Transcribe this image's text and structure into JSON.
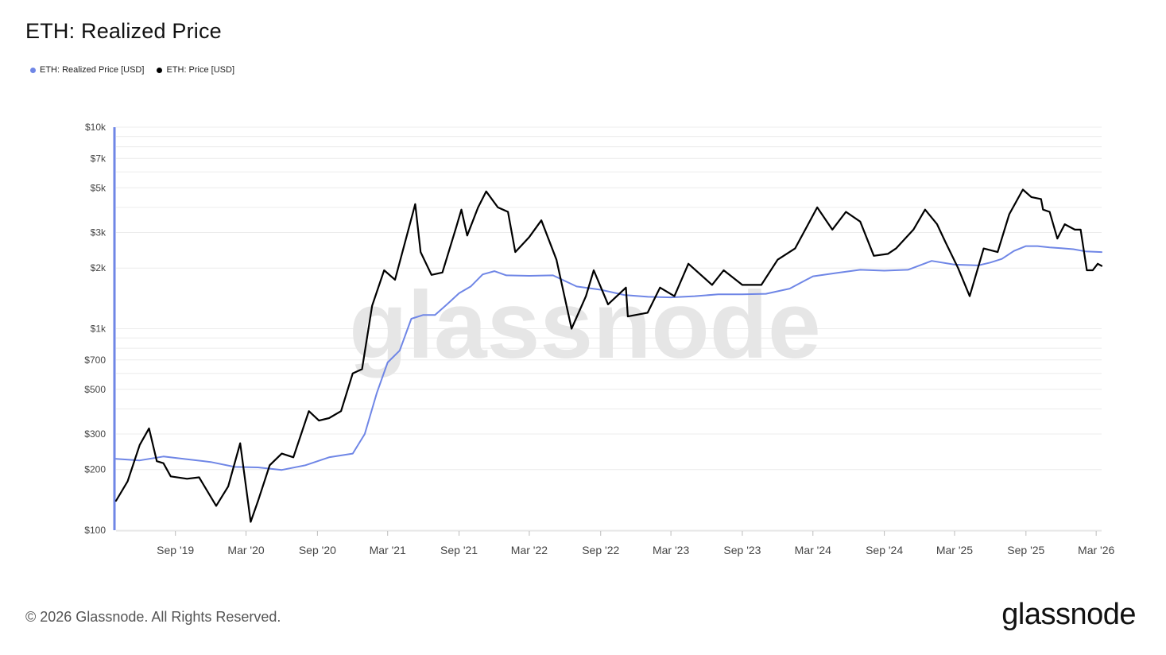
{
  "title": "ETH: Realized Price",
  "legend": [
    {
      "label": "ETH: Realized Price [USD]",
      "color": "#6f86e6"
    },
    {
      "label": "ETH: Price [USD]",
      "color": "#000000"
    }
  ],
  "watermark": "glassnode",
  "footer": {
    "copyright": "© 2026 Glassnode. All Rights Reserved.",
    "brand": "glassnode"
  },
  "chart_data": {
    "type": "line",
    "title": "ETH: Realized Price",
    "y_scale": "log",
    "ylim": [
      100,
      10000
    ],
    "xlim": [
      "2019-04-01",
      "2026-03-15"
    ],
    "grid": true,
    "legend_position": "top-left",
    "y_ticks": [
      {
        "value": 10000,
        "label": "$10k"
      },
      {
        "value": 7000,
        "label": "$7k"
      },
      {
        "value": 5000,
        "label": "$5k"
      },
      {
        "value": 3000,
        "label": "$3k"
      },
      {
        "value": 2000,
        "label": "$2k"
      },
      {
        "value": 1000,
        "label": "$1k"
      },
      {
        "value": 700,
        "label": "$700"
      },
      {
        "value": 500,
        "label": "$500"
      },
      {
        "value": 300,
        "label": "$300"
      },
      {
        "value": 200,
        "label": "$200"
      },
      {
        "value": 100,
        "label": "$100"
      }
    ],
    "x_ticks": [
      {
        "date": "2019-09-01",
        "label": "Sep '19"
      },
      {
        "date": "2020-03-01",
        "label": "Mar '20"
      },
      {
        "date": "2020-09-01",
        "label": "Sep '20"
      },
      {
        "date": "2021-03-01",
        "label": "Mar '21"
      },
      {
        "date": "2021-09-01",
        "label": "Sep '21"
      },
      {
        "date": "2022-03-01",
        "label": "Mar '22"
      },
      {
        "date": "2022-09-01",
        "label": "Sep '22"
      },
      {
        "date": "2023-03-01",
        "label": "Mar '23"
      },
      {
        "date": "2023-09-01",
        "label": "Sep '23"
      },
      {
        "date": "2024-03-01",
        "label": "Mar '24"
      },
      {
        "date": "2024-09-01",
        "label": "Sep '24"
      },
      {
        "date": "2025-03-01",
        "label": "Mar '25"
      },
      {
        "date": "2025-09-01",
        "label": "Sep '25"
      },
      {
        "date": "2026-03-01",
        "label": "Mar '26"
      }
    ],
    "series": [
      {
        "name": "ETH: Realized Price [USD]",
        "color": "#6f86e6",
        "points": [
          [
            "2019-04-01",
            226
          ],
          [
            "2019-06-01",
            222
          ],
          [
            "2019-08-01",
            232
          ],
          [
            "2019-10-01",
            225
          ],
          [
            "2019-12-01",
            218
          ],
          [
            "2020-02-01",
            206
          ],
          [
            "2020-04-01",
            205
          ],
          [
            "2020-06-01",
            199
          ],
          [
            "2020-08-01",
            210
          ],
          [
            "2020-10-01",
            230
          ],
          [
            "2020-12-01",
            240
          ],
          [
            "2021-01-01",
            300
          ],
          [
            "2021-02-01",
            480
          ],
          [
            "2021-03-01",
            680
          ],
          [
            "2021-04-01",
            780
          ],
          [
            "2021-05-01",
            1120
          ],
          [
            "2021-06-01",
            1170
          ],
          [
            "2021-07-01",
            1170
          ],
          [
            "2021-08-01",
            1320
          ],
          [
            "2021-09-01",
            1500
          ],
          [
            "2021-10-01",
            1620
          ],
          [
            "2021-11-01",
            1860
          ],
          [
            "2021-12-01",
            1930
          ],
          [
            "2022-01-01",
            1840
          ],
          [
            "2022-03-01",
            1830
          ],
          [
            "2022-05-01",
            1840
          ],
          [
            "2022-07-01",
            1620
          ],
          [
            "2022-09-01",
            1560
          ],
          [
            "2022-11-01",
            1470
          ],
          [
            "2023-01-01",
            1440
          ],
          [
            "2023-03-01",
            1430
          ],
          [
            "2023-05-01",
            1450
          ],
          [
            "2023-07-01",
            1480
          ],
          [
            "2023-09-01",
            1480
          ],
          [
            "2023-11-01",
            1490
          ],
          [
            "2024-01-01",
            1580
          ],
          [
            "2024-03-01",
            1820
          ],
          [
            "2024-05-01",
            1890
          ],
          [
            "2024-07-01",
            1960
          ],
          [
            "2024-09-01",
            1940
          ],
          [
            "2024-11-01",
            1960
          ],
          [
            "2025-01-01",
            2170
          ],
          [
            "2025-03-01",
            2080
          ],
          [
            "2025-05-01",
            2060
          ],
          [
            "2025-06-01",
            2130
          ],
          [
            "2025-07-01",
            2220
          ],
          [
            "2025-08-01",
            2430
          ],
          [
            "2025-09-01",
            2570
          ],
          [
            "2025-10-01",
            2570
          ],
          [
            "2025-11-01",
            2530
          ],
          [
            "2025-12-01",
            2510
          ],
          [
            "2026-01-01",
            2480
          ],
          [
            "2026-02-01",
            2420
          ],
          [
            "2026-03-15",
            2400
          ]
        ]
      },
      {
        "name": "ETH: Price [USD]",
        "color": "#000000",
        "points": [
          [
            "2019-04-01",
            140
          ],
          [
            "2019-05-01",
            175
          ],
          [
            "2019-06-01",
            265
          ],
          [
            "2019-06-25",
            320
          ],
          [
            "2019-07-15",
            220
          ],
          [
            "2019-08-01",
            215
          ],
          [
            "2019-08-20",
            185
          ],
          [
            "2019-10-01",
            180
          ],
          [
            "2019-11-01",
            183
          ],
          [
            "2019-12-15",
            132
          ],
          [
            "2020-01-15",
            165
          ],
          [
            "2020-02-15",
            270
          ],
          [
            "2020-03-13",
            110
          ],
          [
            "2020-04-01",
            140
          ],
          [
            "2020-05-01",
            210
          ],
          [
            "2020-06-01",
            240
          ],
          [
            "2020-07-01",
            230
          ],
          [
            "2020-08-10",
            390
          ],
          [
            "2020-09-05",
            350
          ],
          [
            "2020-10-01",
            360
          ],
          [
            "2020-11-01",
            390
          ],
          [
            "2020-12-01",
            600
          ],
          [
            "2020-12-25",
            630
          ],
          [
            "2021-01-20",
            1300
          ],
          [
            "2021-02-20",
            1950
          ],
          [
            "2021-03-20",
            1750
          ],
          [
            "2021-05-11",
            4150
          ],
          [
            "2021-05-25",
            2400
          ],
          [
            "2021-06-22",
            1850
          ],
          [
            "2021-07-20",
            1900
          ],
          [
            "2021-08-25",
            3200
          ],
          [
            "2021-09-07",
            3900
          ],
          [
            "2021-09-22",
            2900
          ],
          [
            "2021-10-20",
            4000
          ],
          [
            "2021-11-10",
            4800
          ],
          [
            "2021-12-10",
            4000
          ],
          [
            "2022-01-05",
            3800
          ],
          [
            "2022-01-24",
            2400
          ],
          [
            "2022-03-01",
            2850
          ],
          [
            "2022-04-01",
            3450
          ],
          [
            "2022-05-10",
            2200
          ],
          [
            "2022-06-18",
            1000
          ],
          [
            "2022-07-25",
            1450
          ],
          [
            "2022-08-14",
            1950
          ],
          [
            "2022-09-20",
            1320
          ],
          [
            "2022-11-05",
            1600
          ],
          [
            "2022-11-10",
            1150
          ],
          [
            "2022-12-31",
            1200
          ],
          [
            "2023-02-01",
            1600
          ],
          [
            "2023-03-10",
            1450
          ],
          [
            "2023-04-15",
            2100
          ],
          [
            "2023-06-15",
            1650
          ],
          [
            "2023-07-15",
            1950
          ],
          [
            "2023-09-01",
            1650
          ],
          [
            "2023-10-20",
            1650
          ],
          [
            "2023-12-01",
            2200
          ],
          [
            "2024-01-15",
            2500
          ],
          [
            "2024-03-12",
            4000
          ],
          [
            "2024-04-20",
            3100
          ],
          [
            "2024-05-25",
            3800
          ],
          [
            "2024-07-01",
            3400
          ],
          [
            "2024-08-05",
            2300
          ],
          [
            "2024-09-10",
            2350
          ],
          [
            "2024-10-01",
            2500
          ],
          [
            "2024-11-15",
            3100
          ],
          [
            "2024-12-15",
            3900
          ],
          [
            "2025-01-15",
            3300
          ],
          [
            "2025-02-05",
            2700
          ],
          [
            "2025-03-10",
            2000
          ],
          [
            "2025-04-09",
            1450
          ],
          [
            "2025-05-15",
            2500
          ],
          [
            "2025-06-20",
            2400
          ],
          [
            "2025-07-20",
            3700
          ],
          [
            "2025-08-24",
            4900
          ],
          [
            "2025-09-15",
            4500
          ],
          [
            "2025-10-10",
            4400
          ],
          [
            "2025-10-15",
            3900
          ],
          [
            "2025-11-01",
            3800
          ],
          [
            "2025-11-21",
            2800
          ],
          [
            "2025-12-10",
            3300
          ],
          [
            "2026-01-05",
            3100
          ],
          [
            "2026-01-20",
            3100
          ],
          [
            "2026-02-05",
            1950
          ],
          [
            "2026-02-20",
            1950
          ],
          [
            "2026-03-05",
            2100
          ],
          [
            "2026-03-15",
            2050
          ]
        ]
      }
    ]
  }
}
